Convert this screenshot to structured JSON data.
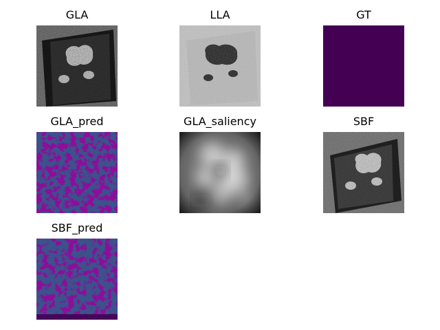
{
  "figure": {
    "panels": [
      {
        "id": "gla",
        "title": "GLA",
        "kind": "ct-bright",
        "colors": {
          "bg": "#8a8a8a",
          "slab": "#3c3c3c",
          "edge": "#1e1e1e",
          "organ": "#e6e6e6"
        }
      },
      {
        "id": "lla",
        "title": "LLA",
        "kind": "ct-inverted",
        "colors": {
          "bg": "#cfcfcf",
          "slab": "#c4c4c4",
          "organ": "#151515"
        }
      },
      {
        "id": "gt",
        "title": "GT",
        "kind": "solid",
        "colors": {
          "fill": "#440154"
        }
      },
      {
        "id": "gla_pred",
        "title": "GLA_pred",
        "kind": "mask",
        "colors": {
          "base": "#3b528b",
          "spot": "#440154"
        }
      },
      {
        "id": "gla_saliency",
        "title": "GLA_saliency",
        "kind": "saliency",
        "colors": {
          "dark": "#1a1a1a",
          "light": "#f2f2f2"
        }
      },
      {
        "id": "sbf",
        "title": "SBF",
        "kind": "ct-bright",
        "colors": {
          "bg": "#8d8d8d",
          "slab": "#4a4a4a",
          "edge": "#262626",
          "organ": "#e2e2e2"
        }
      },
      {
        "id": "sbf_pred",
        "title": "SBF_pred",
        "kind": "mask",
        "colors": {
          "base": "#3b528b",
          "spot": "#440154"
        }
      }
    ]
  }
}
